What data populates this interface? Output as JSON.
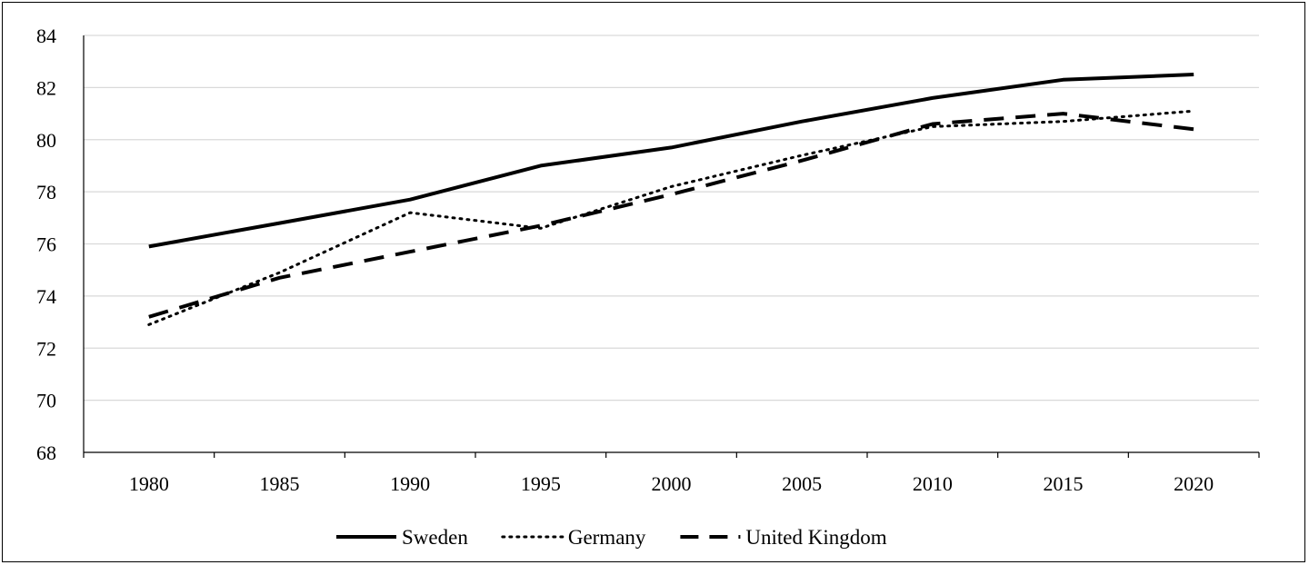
{
  "chart_data": {
    "type": "line",
    "title": "",
    "xlabel": "",
    "ylabel": "",
    "categories": [
      "1980",
      "1985",
      "1990",
      "1995",
      "2000",
      "2005",
      "2010",
      "2015",
      "2020"
    ],
    "y_ticks": [
      "68",
      "70",
      "72",
      "74",
      "76",
      "78",
      "80",
      "82",
      "84"
    ],
    "ylim": [
      68,
      84
    ],
    "grid": "horizontal",
    "legend_position": "bottom",
    "series": [
      {
        "name": "Sweden",
        "values": [
          75.9,
          76.8,
          77.7,
          79.0,
          79.7,
          80.7,
          81.6,
          82.3,
          82.5
        ],
        "color": "#000000",
        "style": "solid"
      },
      {
        "name": "Germany",
        "values": [
          72.9,
          74.9,
          77.2,
          76.6,
          78.2,
          79.4,
          80.5,
          80.7,
          81.1
        ],
        "color": "#000000",
        "style": "dotted"
      },
      {
        "name": "United Kingdom",
        "values": [
          73.2,
          74.7,
          75.7,
          76.7,
          77.9,
          79.2,
          80.6,
          81.0,
          80.4
        ],
        "color": "#000000",
        "style": "dashed"
      }
    ]
  }
}
